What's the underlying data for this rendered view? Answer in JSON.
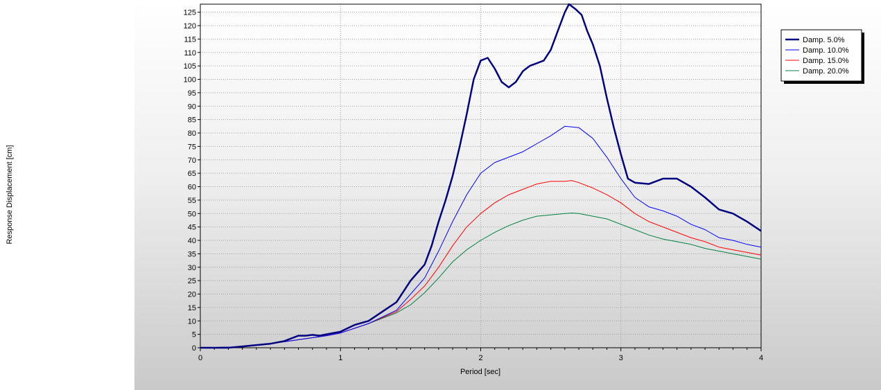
{
  "chart_data": {
    "type": "line",
    "title": "",
    "xlabel": "Period [sec]",
    "ylabel": "Response Displacement [cm]",
    "xlim": [
      0,
      4
    ],
    "ylim": [
      0,
      128
    ],
    "xticks": [
      0,
      1,
      2,
      3,
      4
    ],
    "yticks": [
      0,
      5,
      10,
      15,
      20,
      25,
      30,
      35,
      40,
      45,
      50,
      55,
      60,
      65,
      70,
      75,
      80,
      85,
      90,
      95,
      100,
      105,
      110,
      115,
      120,
      125
    ],
    "grid": true,
    "legend_position": "top-right",
    "series": [
      {
        "name": "Damp. 5.0%",
        "color": "#000080",
        "width": 2.5,
        "points": [
          [
            0,
            0
          ],
          [
            0.2,
            0
          ],
          [
            0.3,
            0.5
          ],
          [
            0.4,
            1
          ],
          [
            0.5,
            1.5
          ],
          [
            0.6,
            2.5
          ],
          [
            0.7,
            4.5
          ],
          [
            0.75,
            4.5
          ],
          [
            0.8,
            4.8
          ],
          [
            0.85,
            4.5
          ],
          [
            0.9,
            5
          ],
          [
            1.0,
            6
          ],
          [
            1.1,
            8.5
          ],
          [
            1.2,
            10
          ],
          [
            1.3,
            13.5
          ],
          [
            1.4,
            17
          ],
          [
            1.5,
            25
          ],
          [
            1.6,
            31
          ],
          [
            1.65,
            38
          ],
          [
            1.7,
            47
          ],
          [
            1.75,
            55
          ],
          [
            1.8,
            64
          ],
          [
            1.85,
            75
          ],
          [
            1.9,
            87
          ],
          [
            1.95,
            100
          ],
          [
            2.0,
            107
          ],
          [
            2.05,
            108
          ],
          [
            2.1,
            104
          ],
          [
            2.15,
            99
          ],
          [
            2.2,
            97
          ],
          [
            2.25,
            99
          ],
          [
            2.3,
            103
          ],
          [
            2.35,
            105
          ],
          [
            2.4,
            106
          ],
          [
            2.45,
            107
          ],
          [
            2.5,
            111
          ],
          [
            2.55,
            118
          ],
          [
            2.6,
            125
          ],
          [
            2.63,
            128
          ],
          [
            2.68,
            126
          ],
          [
            2.72,
            124
          ],
          [
            2.76,
            118
          ],
          [
            2.8,
            113
          ],
          [
            2.85,
            105
          ],
          [
            2.9,
            93
          ],
          [
            2.95,
            82
          ],
          [
            3.0,
            72
          ],
          [
            3.05,
            63
          ],
          [
            3.1,
            61.5
          ],
          [
            3.2,
            61
          ],
          [
            3.3,
            63
          ],
          [
            3.4,
            63
          ],
          [
            3.5,
            60
          ],
          [
            3.6,
            56
          ],
          [
            3.7,
            51.5
          ],
          [
            3.8,
            50
          ],
          [
            3.9,
            47
          ],
          [
            4.0,
            43.5
          ]
        ]
      },
      {
        "name": "Damp. 10.0%",
        "color": "#0000ff",
        "width": 1,
        "points": [
          [
            0,
            0
          ],
          [
            0.3,
            0.3
          ],
          [
            0.5,
            1.5
          ],
          [
            0.7,
            3
          ],
          [
            0.9,
            4.5
          ],
          [
            1.0,
            5.5
          ],
          [
            1.2,
            9
          ],
          [
            1.4,
            14
          ],
          [
            1.5,
            20
          ],
          [
            1.6,
            26
          ],
          [
            1.7,
            36
          ],
          [
            1.8,
            47
          ],
          [
            1.9,
            57
          ],
          [
            2.0,
            65
          ],
          [
            2.1,
            69
          ],
          [
            2.2,
            71
          ],
          [
            2.3,
            73
          ],
          [
            2.4,
            76
          ],
          [
            2.5,
            79
          ],
          [
            2.6,
            82.5
          ],
          [
            2.7,
            82
          ],
          [
            2.8,
            78
          ],
          [
            2.9,
            71
          ],
          [
            3.0,
            63
          ],
          [
            3.1,
            56
          ],
          [
            3.2,
            52.5
          ],
          [
            3.3,
            51
          ],
          [
            3.4,
            49
          ],
          [
            3.5,
            46
          ],
          [
            3.6,
            44
          ],
          [
            3.7,
            41
          ],
          [
            3.8,
            40
          ],
          [
            3.9,
            38.5
          ],
          [
            4.0,
            37.5
          ]
        ]
      },
      {
        "name": "Damp. 15.0%",
        "color": "#ff0000",
        "width": 1,
        "points": [
          [
            0,
            0
          ],
          [
            0.3,
            0.3
          ],
          [
            0.5,
            1.5
          ],
          [
            0.7,
            3
          ],
          [
            0.9,
            4.5
          ],
          [
            1.0,
            5.5
          ],
          [
            1.2,
            9
          ],
          [
            1.4,
            13.5
          ],
          [
            1.5,
            18
          ],
          [
            1.6,
            23
          ],
          [
            1.7,
            30
          ],
          [
            1.8,
            38
          ],
          [
            1.9,
            45
          ],
          [
            2.0,
            50
          ],
          [
            2.1,
            54
          ],
          [
            2.2,
            57
          ],
          [
            2.3,
            59
          ],
          [
            2.4,
            61
          ],
          [
            2.5,
            62
          ],
          [
            2.6,
            62
          ],
          [
            2.65,
            62.3
          ],
          [
            2.7,
            61.5
          ],
          [
            2.8,
            59.5
          ],
          [
            2.9,
            57
          ],
          [
            3.0,
            54
          ],
          [
            3.1,
            50
          ],
          [
            3.2,
            47
          ],
          [
            3.3,
            45
          ],
          [
            3.4,
            43
          ],
          [
            3.5,
            41
          ],
          [
            3.6,
            39.5
          ],
          [
            3.7,
            37.5
          ],
          [
            3.8,
            36.5
          ],
          [
            3.9,
            35.5
          ],
          [
            4.0,
            34.5
          ]
        ]
      },
      {
        "name": "Damp. 20.0%",
        "color": "#008040",
        "width": 1,
        "points": [
          [
            0,
            0
          ],
          [
            0.3,
            0.3
          ],
          [
            0.5,
            1.5
          ],
          [
            0.7,
            3
          ],
          [
            0.9,
            4.5
          ],
          [
            1.0,
            5.5
          ],
          [
            1.2,
            9
          ],
          [
            1.4,
            13
          ],
          [
            1.5,
            16
          ],
          [
            1.6,
            20.5
          ],
          [
            1.7,
            26
          ],
          [
            1.8,
            32
          ],
          [
            1.9,
            36.5
          ],
          [
            2.0,
            40
          ],
          [
            2.1,
            43
          ],
          [
            2.2,
            45.5
          ],
          [
            2.3,
            47.5
          ],
          [
            2.4,
            49
          ],
          [
            2.5,
            49.5
          ],
          [
            2.6,
            50
          ],
          [
            2.65,
            50.2
          ],
          [
            2.7,
            50
          ],
          [
            2.8,
            49
          ],
          [
            2.9,
            48
          ],
          [
            3.0,
            46
          ],
          [
            3.1,
            44
          ],
          [
            3.2,
            42
          ],
          [
            3.3,
            40.5
          ],
          [
            3.4,
            39.5
          ],
          [
            3.5,
            38.5
          ],
          [
            3.6,
            37
          ],
          [
            3.7,
            36
          ],
          [
            3.8,
            35
          ],
          [
            3.9,
            34
          ],
          [
            4.0,
            33
          ]
        ]
      }
    ]
  }
}
